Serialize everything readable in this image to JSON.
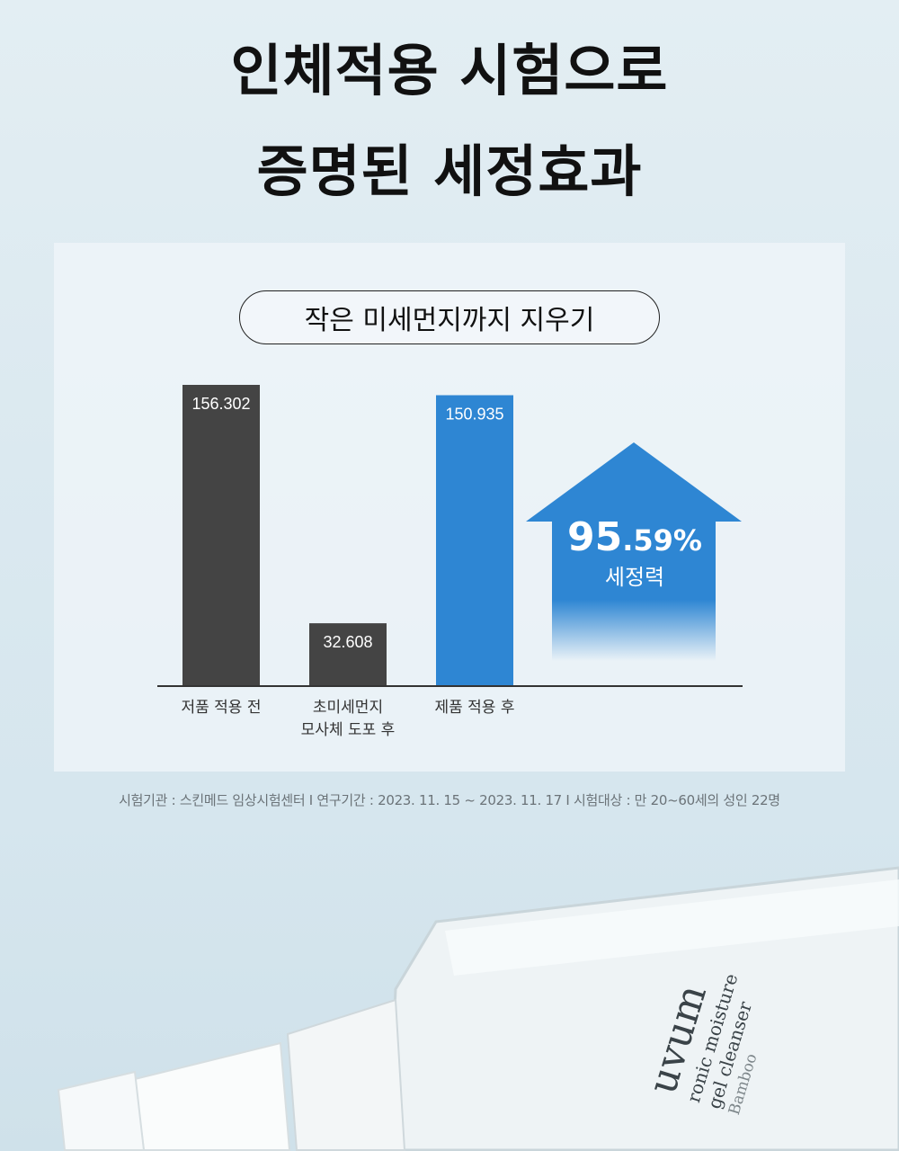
{
  "header": {
    "title_line1": "인체적용 시험으로",
    "title_line2": "증명된 세정효과"
  },
  "badge": {
    "label": "작은 미세먼지까지 지우기"
  },
  "chart_data": {
    "type": "bar",
    "categories": [
      "저품 적용 전",
      "초미세먼지\n모사체 도포 후",
      "제품 적용 후"
    ],
    "category_lines": [
      [
        "저품 적용 전"
      ],
      [
        "초미세먼지",
        "모사체 도포 후"
      ],
      [
        "제품 적용 후"
      ]
    ],
    "values": [
      156.302,
      32.608,
      150.935
    ],
    "data_labels": [
      "156.302",
      "32.608",
      "150.935"
    ],
    "bar_colors": [
      "#444444",
      "#444444",
      "#2e86d3"
    ],
    "title": "",
    "xlabel": "",
    "ylabel": "",
    "grid": false
  },
  "callout": {
    "value_big": "95",
    "value_small": ".59%",
    "label": "세정력",
    "color": "#2e86d3"
  },
  "footnote": "시험기관 : 스킨메드 임상시험센터 I 연구기간 : 2023. 11. 15 ~ 2023. 11. 17  I  시험대상 : 만 20~60세의 성인 22명",
  "product": {
    "brand": "uvum",
    "line1": "ronic moisture",
    "line2": "gel cleanser",
    "variant": "Bamboo"
  }
}
